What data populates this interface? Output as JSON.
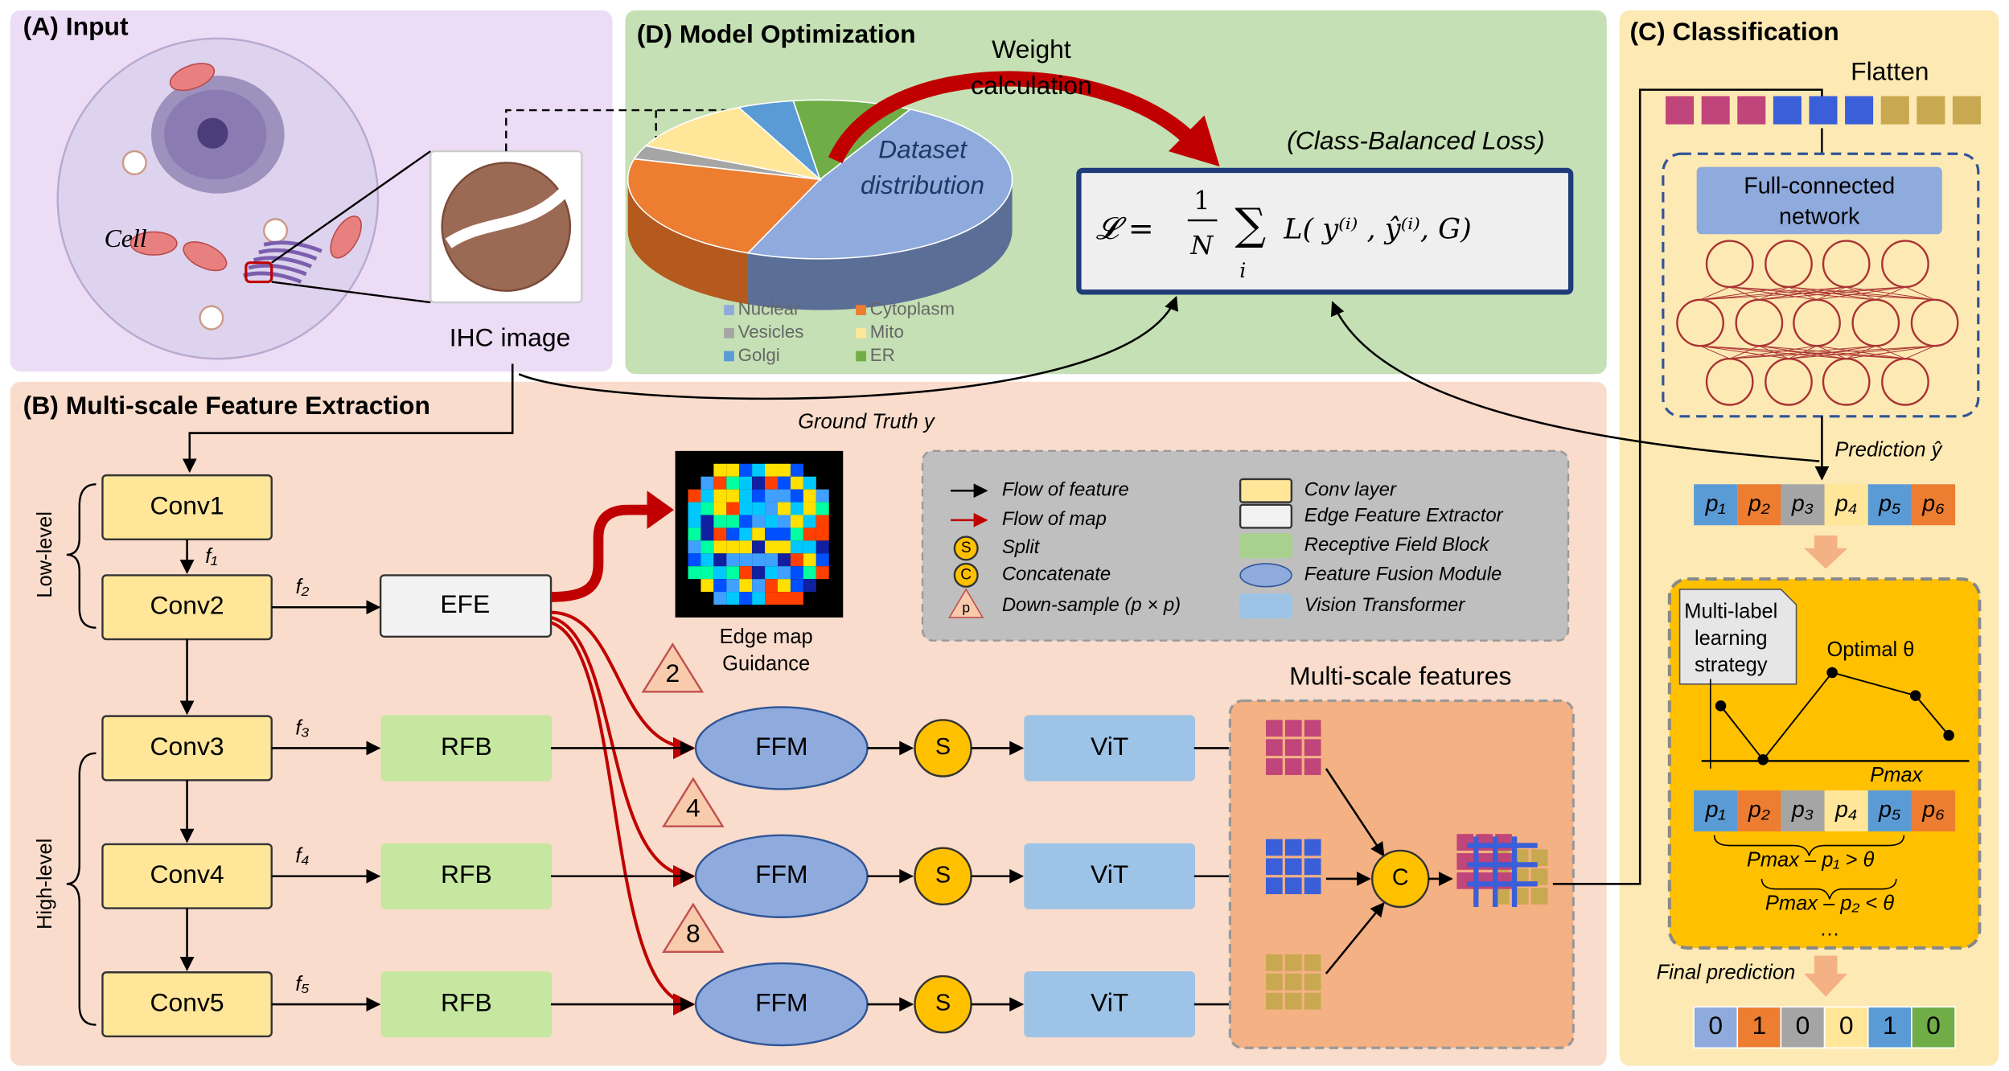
{
  "input": {
    "title": "(A) Input",
    "cell_label": "Cell",
    "image_label": "IHC image"
  },
  "optimization": {
    "title": "(D) Model Optimization",
    "arrow_label": [
      "Weight",
      "calculation"
    ],
    "pie_label": [
      "Dataset",
      "distribution"
    ],
    "pie_legend": [
      "Nuclear",
      "Cytoplasm",
      "Vesicles",
      "Mito",
      "Golgi",
      "ER"
    ],
    "loss_name": "(Class-Balanced Loss)",
    "formula": {
      "lhs": "𝓛 =",
      "numerator": "1",
      "denominator": "N",
      "sum": "∑",
      "index": "i",
      "body": "L( y⁽ⁱ⁾ , ŷ⁽ⁱ⁾, G)"
    }
  },
  "extraction": {
    "title": "(B) Multi-scale Feature Extraction",
    "low_level": "Low-level",
    "high_level": "High-level",
    "convs": [
      "Conv1",
      "Conv2",
      "Conv3",
      "Conv4",
      "Conv5"
    ],
    "features": [
      "f₁",
      "f₂",
      "f₃",
      "f₄",
      "f₅"
    ],
    "efe": "EFE",
    "rfb": [
      "RFB",
      "RFB",
      "RFB"
    ],
    "ffm": [
      "FFM",
      "FFM",
      "FFM"
    ],
    "split": [
      "S",
      "S",
      "S"
    ],
    "vit": [
      "ViT",
      "ViT",
      "ViT"
    ],
    "ground_truth": "Ground Truth y",
    "edge_map": [
      "Edge map",
      "Guidance"
    ],
    "downsample": [
      2,
      4,
      8
    ],
    "multiscale_title": "Multi-scale features",
    "concat": "C",
    "legend_labels": [
      "Flow of feature",
      "Flow of map",
      "Split",
      "Concatenate",
      "Down-sample (p × p)",
      "Conv layer",
      "Edge Feature Extractor",
      "Receptive Field Block",
      "Feature Fusion Module",
      "Vision Transformer"
    ],
    "legend_symbols": [
      "S",
      "C",
      "p"
    ]
  },
  "classification": {
    "title": "(C) Classification",
    "flatten": "Flatten",
    "network": [
      "Full-connected",
      "network"
    ],
    "prediction": "Prediction ŷ",
    "probabilities": [
      "p₁",
      "p₂",
      "p₃",
      "p₄",
      "p₅",
      "p₆"
    ],
    "strategy": [
      "Multi-label",
      "learning",
      "strategy"
    ],
    "optimal": "Optimal θ",
    "pmax": "Pmax",
    "rules": [
      "Pmax – p₁ > θ",
      "Pmax – p₂ < θ",
      "…"
    ],
    "final_label": "Final prediction",
    "final": [
      0,
      1,
      0,
      0,
      1,
      0
    ]
  }
}
